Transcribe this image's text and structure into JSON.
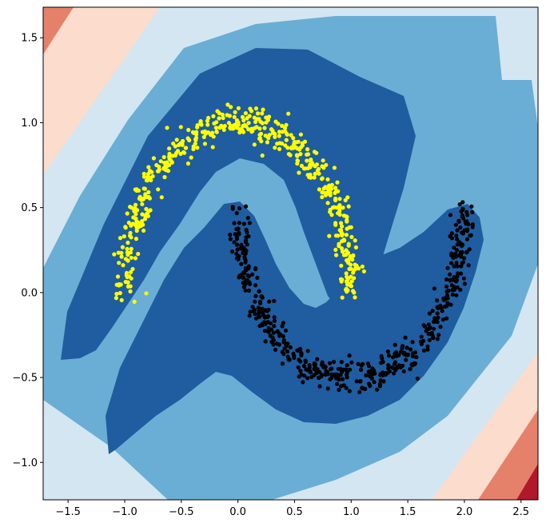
{
  "chart_data": {
    "type": "scatter",
    "title": "",
    "xlabel": "",
    "ylabel": "",
    "xlim": [
      -1.72,
      2.65
    ],
    "ylim": [
      -1.22,
      1.68
    ],
    "x_ticks": [
      -1.5,
      -1.0,
      -0.5,
      0.0,
      0.5,
      1.0,
      1.5,
      2.0,
      2.5
    ],
    "x_tick_labels": [
      "−1.5",
      "−1.0",
      "−0.5",
      "0.0",
      "0.5",
      "1.0",
      "1.5",
      "2.0",
      "2.5"
    ],
    "y_ticks": [
      -1.0,
      -0.5,
      0.0,
      0.5,
      1.0,
      1.5
    ],
    "y_tick_labels": [
      "−1.0",
      "−0.5",
      "0.0",
      "0.5",
      "1.0",
      "1.5"
    ],
    "grid": false,
    "legend": "none",
    "background": {
      "type": "filled-contour",
      "colormap": "RdBu",
      "level_colors": [
        "#1f5da0",
        "#6aaed5",
        "#d4e6f1",
        "#fcdccc",
        "#e5816a",
        "#b2182b"
      ]
    },
    "series": [
      {
        "color": "#ffff00",
        "shape": "upper-moon",
        "count": 500,
        "center": [
          0.0,
          0.0
        ],
        "radius": 1.0,
        "angle_range_deg": [
          0,
          180
        ],
        "noise": 0.05
      },
      {
        "color": "#000000",
        "shape": "lower-moon",
        "count": 500,
        "center": [
          1.0,
          0.5
        ],
        "radius": 1.0,
        "angle_range_deg": [
          180,
          360
        ],
        "noise": 0.05
      }
    ]
  }
}
